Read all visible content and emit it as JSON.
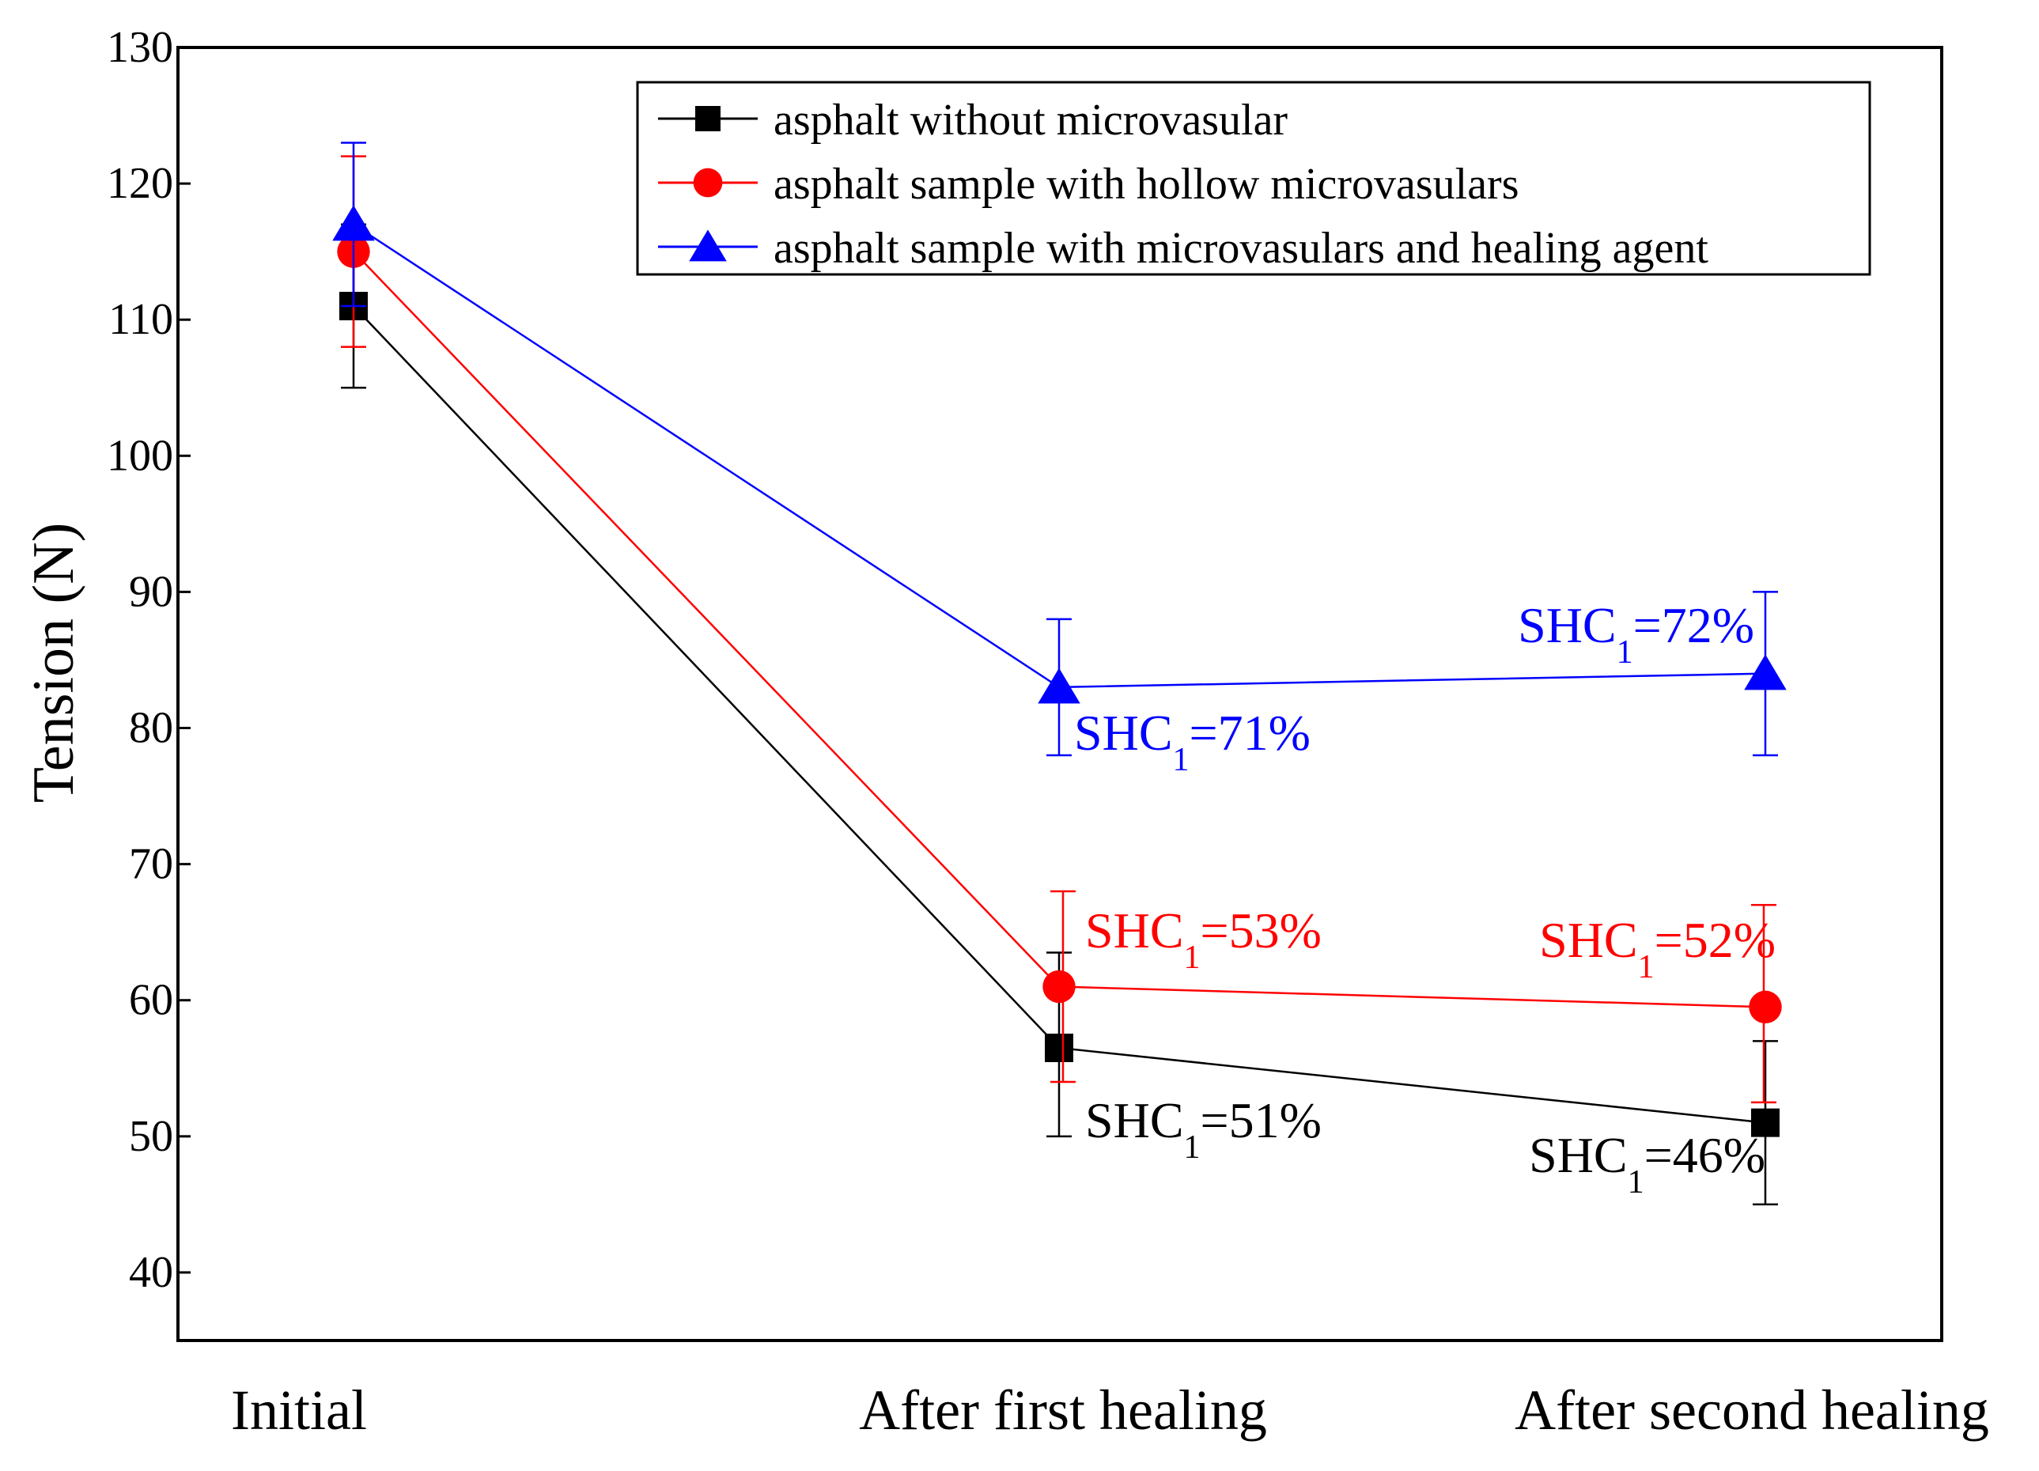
{
  "chart_data": {
    "type": "line",
    "title": "",
    "xlabel": "",
    "ylabel": "Tension (N)",
    "categories": [
      "Initial",
      "After first healing",
      "After second healing"
    ],
    "ylim": [
      35,
      130
    ],
    "yticks": [
      40,
      50,
      60,
      70,
      80,
      90,
      100,
      110,
      120,
      130
    ],
    "legend_position": "top-right",
    "series": [
      {
        "name": "asphalt without microvasular",
        "color": "#000000",
        "marker": "square",
        "values": [
          111,
          56.5,
          51
        ],
        "errors": [
          [
            105,
            117
          ],
          [
            50,
            63.5
          ],
          [
            45,
            57
          ]
        ],
        "annotations": [
          {
            "index": 1,
            "text": "SHC",
            "sub": "1",
            "suffix": "=51%"
          },
          {
            "index": 2,
            "text": "SHC",
            "sub": "1",
            "suffix": "=46%"
          }
        ]
      },
      {
        "name": "asphalt sample with hollow microvasulars",
        "color": "#ff0000",
        "marker": "circle",
        "values": [
          115,
          61,
          59.5
        ],
        "errors": [
          [
            108,
            122
          ],
          [
            54,
            68
          ],
          [
            52.5,
            67
          ]
        ],
        "annotations": [
          {
            "index": 1,
            "text": "SHC",
            "sub": "1",
            "suffix": "=53%"
          },
          {
            "index": 2,
            "text": "SHC",
            "sub": "1",
            "suffix": "=52%"
          }
        ]
      },
      {
        "name": "asphalt sample with microvasulars and healing agent",
        "color": "#0000ff",
        "marker": "triangle",
        "values": [
          117,
          83,
          84
        ],
        "errors": [
          [
            111,
            123
          ],
          [
            78,
            88
          ],
          [
            78,
            90
          ]
        ],
        "annotations": [
          {
            "index": 1,
            "text": "SHC",
            "sub": "1",
            "suffix": "=71%"
          },
          {
            "index": 2,
            "text": "SHC",
            "sub": "1",
            "suffix": "=72%"
          }
        ]
      }
    ]
  }
}
